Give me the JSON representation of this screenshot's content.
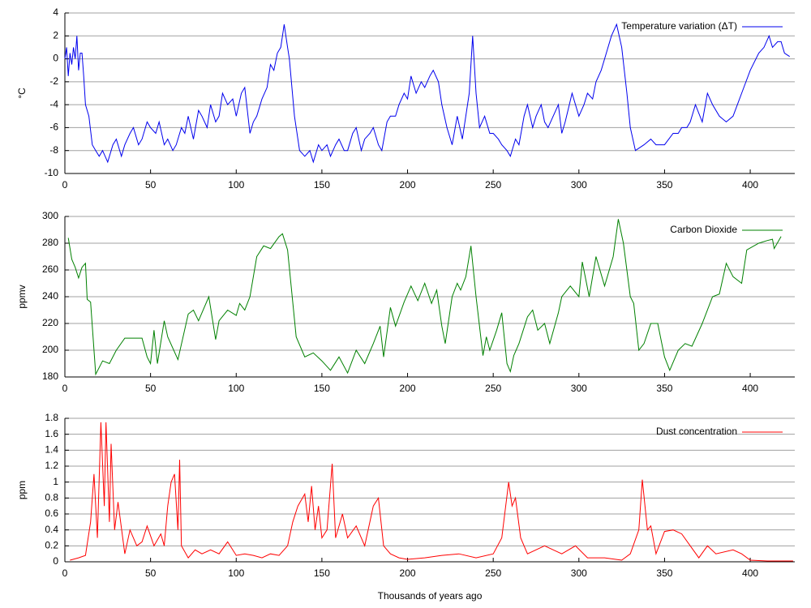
{
  "chart_data": [
    {
      "type": "line",
      "ylabel": "°C",
      "legend": "upper right",
      "grid": true,
      "xlim": [
        0,
        426
      ],
      "xticks": [
        0,
        50,
        100,
        150,
        200,
        250,
        300,
        350,
        400
      ],
      "ylim": [
        -10,
        4
      ],
      "yticks": [
        -10,
        -8,
        -6,
        -4,
        -2,
        0,
        2,
        4
      ],
      "x": [
        0,
        1,
        2,
        3,
        4,
        5,
        6,
        7,
        8,
        9,
        10,
        11,
        12,
        14,
        16,
        18,
        20,
        22,
        25,
        28,
        30,
        33,
        35,
        38,
        40,
        43,
        45,
        48,
        50,
        53,
        55,
        58,
        60,
        63,
        65,
        68,
        70,
        72,
        75,
        78,
        80,
        83,
        85,
        88,
        90,
        92,
        95,
        98,
        100,
        103,
        105,
        108,
        110,
        112,
        115,
        118,
        120,
        122,
        124,
        126,
        128,
        130,
        131,
        134,
        137,
        140,
        143,
        145,
        148,
        150,
        153,
        155,
        158,
        160,
        163,
        165,
        168,
        170,
        173,
        175,
        178,
        180,
        183,
        185,
        188,
        190,
        193,
        195,
        198,
        200,
        202,
        205,
        208,
        210,
        213,
        215,
        218,
        220,
        223,
        226,
        229,
        232,
        236,
        238,
        240,
        242,
        245,
        248,
        250,
        253,
        255,
        258,
        260,
        263,
        265,
        268,
        270,
        273,
        275,
        278,
        280,
        282,
        285,
        288,
        290,
        292,
        296,
        300,
        303,
        305,
        308,
        310,
        313,
        315,
        319,
        322,
        325,
        328,
        330,
        333,
        338,
        342,
        345,
        350,
        355,
        358,
        360,
        363,
        365,
        368,
        372,
        375,
        378,
        382,
        386,
        390,
        395,
        400,
        405,
        408,
        411,
        413,
        416,
        418,
        420,
        422,
        423
      ],
      "series": [
        {
          "name": "Temperature variation (ΔT)",
          "color": "#0000ee",
          "values": [
            0,
            1,
            -1.5,
            0.5,
            -0.5,
            1,
            0,
            2,
            -1,
            0.5,
            0.5,
            -1.5,
            -4,
            -5,
            -7.5,
            -8,
            -8.5,
            -8,
            -9,
            -7.5,
            -7,
            -8.5,
            -7.5,
            -6.5,
            -6,
            -7.5,
            -7,
            -5.5,
            -6,
            -6.5,
            -5.5,
            -7.5,
            -7,
            -8,
            -7.5,
            -6,
            -6.5,
            -5,
            -7,
            -4.5,
            -5,
            -6,
            -4,
            -5.5,
            -5,
            -3,
            -4,
            -3.5,
            -5,
            -3,
            -2.5,
            -6.5,
            -5.5,
            -5,
            -3.5,
            -2.5,
            -0.5,
            -1,
            0.5,
            1,
            3,
            1,
            0,
            -5,
            -8,
            -8.5,
            -8,
            -9,
            -7.5,
            -8,
            -7.5,
            -8.5,
            -7.5,
            -7,
            -8,
            -8,
            -6.5,
            -6,
            -8,
            -7,
            -6.5,
            -6,
            -7.5,
            -8,
            -5.5,
            -5,
            -5,
            -4,
            -3,
            -3.5,
            -1.5,
            -3,
            -2,
            -2.5,
            -1.5,
            -1,
            -2,
            -4,
            -6,
            -7.5,
            -5,
            -7,
            -3,
            2,
            -3,
            -6,
            -5,
            -6.5,
            -6.5,
            -7,
            -7.5,
            -8,
            -8.5,
            -7,
            -7.5,
            -5,
            -4,
            -6,
            -5,
            -4,
            -5.5,
            -6,
            -5,
            -4,
            -6.5,
            -5.5,
            -3,
            -5,
            -4,
            -3,
            -3.5,
            -2,
            -1,
            0,
            2,
            3,
            1,
            -3,
            -6,
            -8,
            -7.5,
            -7,
            -7.5,
            -7.5,
            -6.5,
            -6.5,
            -6,
            -6,
            -5.5,
            -4,
            -5.5,
            -3,
            -4,
            -5,
            -5.5,
            -5,
            -3,
            -1,
            0.5,
            1,
            2,
            1,
            1.5,
            1.5,
            0.5,
            0.3,
            0.2
          ]
        }
      ]
    },
    {
      "type": "line",
      "ylabel": "ppmv",
      "legend": "upper right",
      "grid": true,
      "xlim": [
        0,
        426
      ],
      "xticks": [
        0,
        50,
        100,
        150,
        200,
        250,
        300,
        350,
        400
      ],
      "ylim": [
        180,
        300
      ],
      "yticks": [
        180,
        200,
        220,
        240,
        260,
        280,
        300
      ],
      "x": [
        2,
        4,
        6,
        8,
        10,
        12,
        13,
        15,
        18,
        22,
        26,
        30,
        35,
        40,
        45,
        48,
        50,
        52,
        54,
        58,
        60,
        66,
        72,
        75,
        78,
        84,
        88,
        90,
        95,
        100,
        102,
        105,
        108,
        112,
        116,
        120,
        125,
        127,
        130,
        135,
        140,
        145,
        150,
        155,
        160,
        165,
        170,
        175,
        180,
        184,
        186,
        190,
        193,
        198,
        202,
        206,
        210,
        214,
        217,
        220,
        222,
        226,
        229,
        231,
        234,
        237,
        240,
        244,
        246,
        248,
        252,
        255,
        258,
        260,
        262,
        265,
        270,
        273,
        276,
        280,
        283,
        288,
        290,
        295,
        300,
        302,
        306,
        310,
        315,
        320,
        323,
        326,
        330,
        332,
        335,
        338,
        342,
        346,
        350,
        353,
        358,
        362,
        366,
        372,
        378,
        382,
        386,
        390,
        395,
        398,
        405,
        410,
        413,
        414,
        418
      ],
      "series": [
        {
          "name": "Carbon Dioxide",
          "color": "#008000",
          "values": [
            284,
            268,
            262,
            254,
            262,
            265,
            238,
            236,
            182,
            192,
            190,
            200,
            209,
            209,
            209,
            195,
            190,
            215,
            190,
            222,
            210,
            193,
            227,
            230,
            222,
            240,
            208,
            222,
            230,
            226,
            235,
            230,
            240,
            270,
            278,
            276,
            285,
            287,
            275,
            210,
            195,
            198,
            192,
            185,
            195,
            183,
            200,
            190,
            205,
            218,
            195,
            232,
            218,
            236,
            248,
            237,
            250,
            235,
            245,
            218,
            205,
            240,
            250,
            245,
            255,
            278,
            240,
            196,
            210,
            200,
            215,
            228,
            190,
            184,
            196,
            205,
            225,
            230,
            215,
            220,
            205,
            228,
            240,
            248,
            240,
            266,
            240,
            270,
            248,
            270,
            298,
            280,
            240,
            235,
            200,
            205,
            220,
            220,
            195,
            185,
            200,
            205,
            203,
            220,
            240,
            242,
            265,
            255,
            250,
            275,
            280,
            282,
            283,
            276,
            285
          ]
        }
      ]
    },
    {
      "type": "line",
      "ylabel": "ppm",
      "xlabel": "Thousands of years ago",
      "legend": "upper right",
      "grid": true,
      "xlim": [
        0,
        426
      ],
      "xticks": [
        0,
        50,
        100,
        150,
        200,
        250,
        300,
        350,
        400
      ],
      "ylim": [
        0,
        1.8
      ],
      "yticks": [
        0,
        0.2,
        0.4,
        0.6,
        0.8,
        1,
        1.2,
        1.4,
        1.6,
        1.8
      ],
      "x": [
        3,
        8,
        12,
        15,
        17,
        19,
        21,
        23,
        24,
        26,
        27,
        29,
        31,
        35,
        38,
        42,
        45,
        48,
        52,
        56,
        58,
        60,
        62,
        64,
        66,
        67,
        68,
        72,
        76,
        80,
        85,
        90,
        95,
        100,
        105,
        110,
        115,
        120,
        125,
        130,
        133,
        136,
        140,
        142,
        144,
        146,
        148,
        150,
        153,
        156,
        158,
        162,
        165,
        170,
        175,
        180,
        183,
        186,
        190,
        195,
        200,
        210,
        220,
        230,
        240,
        250,
        255,
        259,
        261,
        263,
        266,
        270,
        280,
        290,
        298,
        305,
        315,
        325,
        330,
        335,
        337,
        340,
        342,
        345,
        350,
        355,
        360,
        365,
        370,
        375,
        380,
        390,
        395,
        400,
        410,
        425
      ],
      "series": [
        {
          "name": "Dust concentration",
          "color": "#ff0000",
          "values": [
            0.02,
            0.05,
            0.08,
            0.5,
            1.1,
            0.3,
            1.75,
            0.7,
            1.75,
            0.5,
            1.48,
            0.4,
            0.75,
            0.1,
            0.4,
            0.2,
            0.25,
            0.45,
            0.2,
            0.35,
            0.2,
            0.7,
            1.0,
            1.1,
            0.4,
            1.28,
            0.2,
            0.05,
            0.15,
            0.1,
            0.15,
            0.1,
            0.25,
            0.08,
            0.1,
            0.08,
            0.05,
            0.1,
            0.08,
            0.2,
            0.5,
            0.7,
            0.85,
            0.5,
            0.95,
            0.4,
            0.7,
            0.3,
            0.4,
            1.23,
            0.3,
            0.6,
            0.3,
            0.45,
            0.2,
            0.7,
            0.8,
            0.2,
            0.1,
            0.05,
            0.03,
            0.05,
            0.08,
            0.1,
            0.05,
            0.1,
            0.3,
            1.0,
            0.7,
            0.8,
            0.3,
            0.1,
            0.2,
            0.1,
            0.2,
            0.05,
            0.05,
            0.02,
            0.1,
            0.4,
            1.03,
            0.4,
            0.45,
            0.1,
            0.38,
            0.4,
            0.35,
            0.2,
            0.05,
            0.2,
            0.1,
            0.15,
            0.1,
            0.02,
            0.01,
            0.01
          ]
        }
      ]
    }
  ]
}
